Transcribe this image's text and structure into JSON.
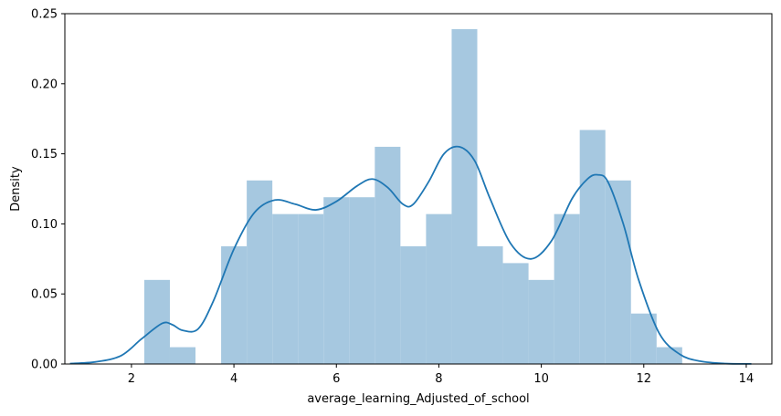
{
  "chart_data": {
    "type": "histogram",
    "title": "",
    "xlabel": "average_learning_Adjusted_of_school",
    "ylabel": "Density",
    "xlim": [
      0.7,
      14.5
    ],
    "ylim": [
      0.0,
      0.25
    ],
    "x_ticks": [
      2,
      4,
      6,
      8,
      10,
      12,
      14
    ],
    "y_ticks": [
      0.0,
      0.05,
      0.1,
      0.15,
      0.2,
      0.25
    ],
    "x_tick_labels": [
      "2",
      "4",
      "6",
      "8",
      "10",
      "12",
      "14"
    ],
    "y_tick_labels": [
      "0.00",
      "0.05",
      "0.10",
      "0.15",
      "0.20",
      "0.25"
    ],
    "grid": false,
    "histogram": {
      "color": "#a6c8e0",
      "bin_edges": [
        2.25,
        2.75,
        3.25,
        3.75,
        4.25,
        4.75,
        5.25,
        5.75,
        6.25,
        6.75,
        7.25,
        7.75,
        8.25,
        8.75,
        9.25,
        9.75,
        10.25,
        10.75,
        11.25,
        11.75,
        12.25,
        12.75
      ],
      "densities": [
        0.06,
        0.012,
        0.0,
        0.084,
        0.131,
        0.107,
        0.107,
        0.119,
        0.119,
        0.155,
        0.084,
        0.107,
        0.239,
        0.084,
        0.072,
        0.06,
        0.107,
        0.167,
        0.131,
        0.036,
        0.012
      ]
    },
    "kde": {
      "color": "#1f77b4",
      "x": [
        0.8,
        1.3,
        1.8,
        2.2,
        2.6,
        2.8,
        3.0,
        3.3,
        3.6,
        4.0,
        4.4,
        4.8,
        5.2,
        5.6,
        6.0,
        6.4,
        6.7,
        7.0,
        7.3,
        7.5,
        7.8,
        8.1,
        8.4,
        8.7,
        9.0,
        9.4,
        9.8,
        10.2,
        10.6,
        10.9,
        11.1,
        11.3,
        11.6,
        11.9,
        12.3,
        12.7,
        13.1,
        13.6,
        14.1
      ],
      "y": [
        0.0003,
        0.0015,
        0.006,
        0.018,
        0.029,
        0.028,
        0.024,
        0.025,
        0.045,
        0.082,
        0.108,
        0.117,
        0.114,
        0.11,
        0.116,
        0.127,
        0.132,
        0.126,
        0.114,
        0.114,
        0.13,
        0.15,
        0.155,
        0.145,
        0.118,
        0.086,
        0.075,
        0.088,
        0.118,
        0.132,
        0.135,
        0.13,
        0.1,
        0.06,
        0.022,
        0.007,
        0.002,
        0.0003,
        0.0001
      ]
    }
  }
}
